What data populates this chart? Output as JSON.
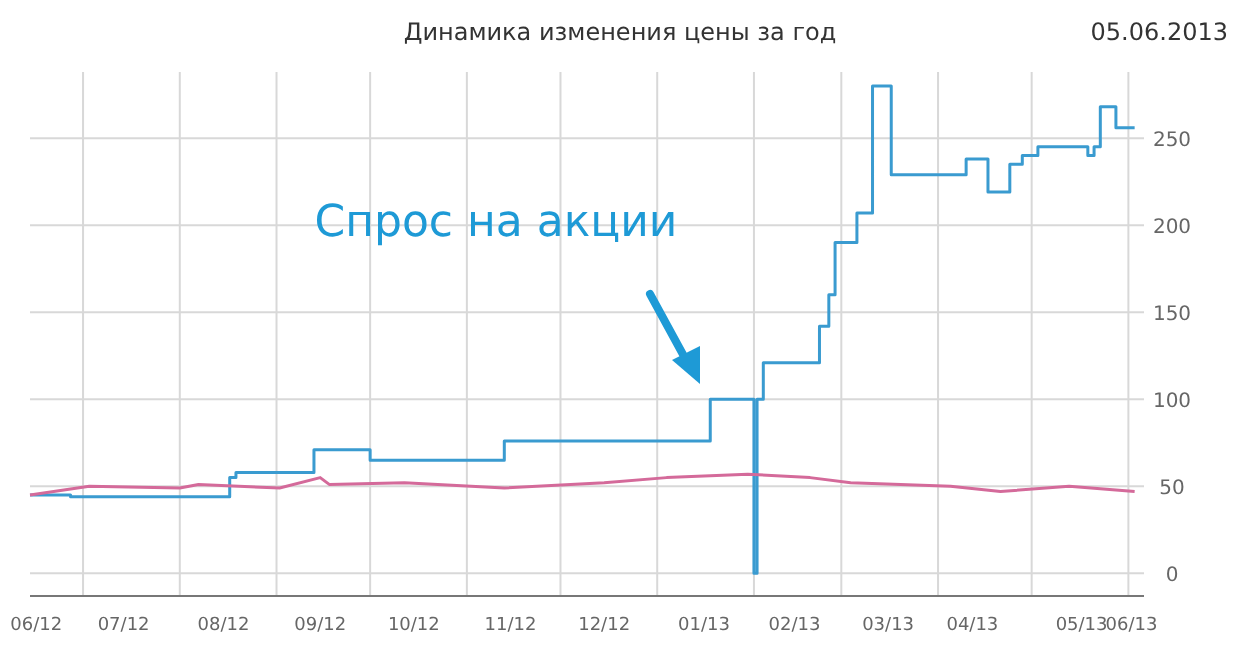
{
  "chart_data": {
    "type": "step",
    "title": "Динамика изменения цены за год",
    "subtitle": "05.06.2013",
    "xlim": [
      "2012-06-14",
      "2013-06-06"
    ],
    "xticks": [
      {
        "value": "2012-06-16",
        "label": "06/12"
      },
      {
        "value": "2012-07-14",
        "label": "07/12"
      },
      {
        "value": "2012-08-15",
        "label": "08/12"
      },
      {
        "value": "2012-09-15",
        "label": "09/12"
      },
      {
        "value": "2012-10-15",
        "label": "10/12"
      },
      {
        "value": "2012-11-15",
        "label": "11/12"
      },
      {
        "value": "2012-12-15",
        "label": "12/12"
      },
      {
        "value": "2013-01-16",
        "label": "01/13"
      },
      {
        "value": "2013-02-14",
        "label": "02/13"
      },
      {
        "value": "2013-03-16",
        "label": "03/13"
      },
      {
        "value": "2013-04-12",
        "label": "04/13"
      },
      {
        "value": "2013-05-17",
        "label": "05/13"
      },
      {
        "value": "2013-06-02",
        "label": "06/13"
      },
      {
        "value": "2012-07-01",
        "label": null
      },
      {
        "value": "2012-08-01",
        "label": null
      },
      {
        "value": "2012-09-01",
        "label": null
      },
      {
        "value": "2012-10-01",
        "label": null
      },
      {
        "value": "2012-11-01",
        "label": null
      },
      {
        "value": "2012-12-01",
        "label": null
      },
      {
        "value": "2013-01-01",
        "label": null
      },
      {
        "value": "2013-02-01",
        "label": null
      },
      {
        "value": "2013-03-01",
        "label": null
      },
      {
        "value": "2013-04-01",
        "label": null
      },
      {
        "value": "2013-05-01",
        "label": null
      },
      {
        "value": "2013-06-01",
        "label": null
      }
    ],
    "ylim": [
      -13,
      288
    ],
    "yticks": [
      0,
      50,
      100,
      150,
      200,
      250
    ],
    "grid": true,
    "series": [
      {
        "type": "step",
        "color": "#3a9bd0",
        "x": [
          "2012-06-14",
          "2012-06-27",
          "2012-08-17",
          "2012-08-19",
          "2012-09-13",
          "2012-10-01",
          "2012-11-13",
          "2013-01-18",
          "2013-02-01",
          "2013-02-02",
          "2013-02-04",
          "2013-02-22",
          "2013-02-25",
          "2013-02-27",
          "2013-03-06",
          "2013-03-11",
          "2013-03-17",
          "2013-04-10",
          "2013-04-17",
          "2013-04-24",
          "2013-04-28",
          "2013-05-03",
          "2013-05-19",
          "2013-05-21",
          "2013-05-23",
          "2013-05-28",
          "2013-06-03"
        ],
        "values": [
          45,
          44,
          55,
          58,
          71,
          65,
          76,
          100,
          0,
          100,
          121,
          142,
          160,
          190,
          207,
          280,
          229,
          238,
          219,
          235,
          240,
          245,
          240,
          245,
          268,
          256,
          256
        ]
      },
      {
        "type": "line",
        "color": "#d46a9a",
        "x": [
          "2012-06-14",
          "2012-07-03",
          "2012-08-01",
          "2012-08-07",
          "2012-09-02",
          "2012-09-15",
          "2012-09-18",
          "2012-10-12",
          "2012-11-13",
          "2012-12-15",
          "2013-01-04",
          "2013-01-30",
          "2013-02-19",
          "2013-03-04",
          "2013-04-05",
          "2013-04-21",
          "2013-05-13",
          "2013-06-03"
        ],
        "values": [
          45,
          50,
          49,
          51,
          49,
          55,
          51,
          52,
          49,
          52,
          55,
          57,
          55,
          52,
          50,
          47,
          50,
          47
        ]
      }
    ],
    "annotations": [
      "Спрос на акции"
    ]
  }
}
